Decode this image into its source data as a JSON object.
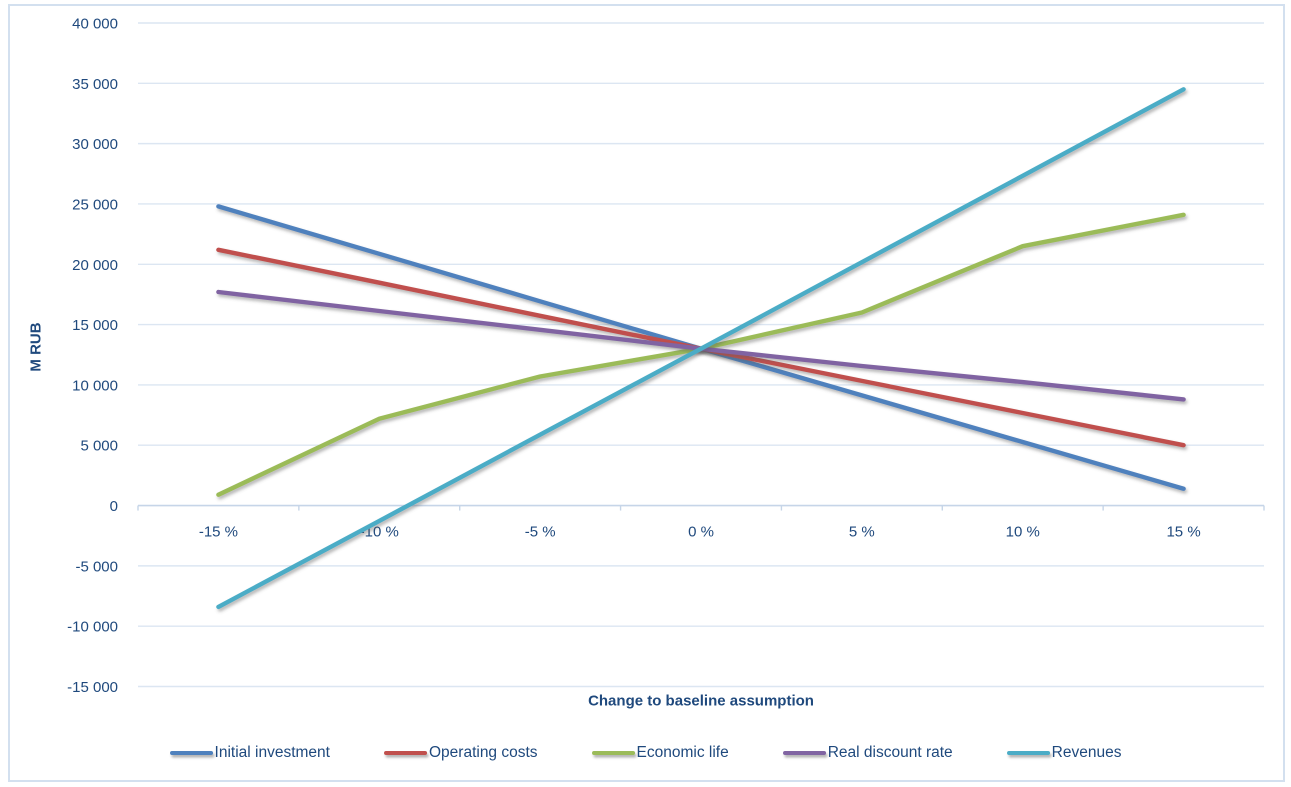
{
  "chart_data": {
    "type": "line",
    "title": "",
    "xlabel": "Change to baseline assumption",
    "ylabel": "M RUB",
    "x_categories": [
      "-15 %",
      "-10 %",
      "-5 %",
      "0 %",
      "5 %",
      "10 %",
      "15 %"
    ],
    "ylim": [
      -15000,
      40000
    ],
    "y_tick_step": 5000,
    "y_tick_labels": [
      "40 000",
      "35 000",
      "30 000",
      "25 000",
      "20 000",
      "15 000",
      "10 000",
      "5 000",
      "0",
      "-5 000",
      "-10 000",
      "-15 000"
    ],
    "grid": true,
    "legend_position": "bottom",
    "baseline_value": 13000,
    "series": [
      {
        "name": "Initial investment",
        "color": "#4F81BD",
        "values": [
          24800,
          20870,
          16930,
          13000,
          9130,
          5270,
          1400
        ]
      },
      {
        "name": "Operating costs",
        "color": "#C0504D",
        "values": [
          21200,
          18470,
          15730,
          13000,
          10330,
          7670,
          5000
        ]
      },
      {
        "name": "Economic life",
        "color": "#9BBB59",
        "values": [
          900,
          7200,
          10700,
          13000,
          16000,
          21500,
          24100
        ]
      },
      {
        "name": "Real discount rate",
        "color": "#8064A2",
        "values": [
          17700,
          16130,
          14570,
          13000,
          11570,
          10230,
          8800
        ]
      },
      {
        "name": "Revenues",
        "color": "#4BACC6",
        "values": [
          -8400,
          -1270,
          5870,
          13000,
          20170,
          27330,
          34500
        ]
      }
    ]
  },
  "colors": {
    "text": "#1F497D",
    "gridline": "#DCE6F2",
    "axis": "#C6D5E8",
    "border": "#D3E0EF"
  }
}
